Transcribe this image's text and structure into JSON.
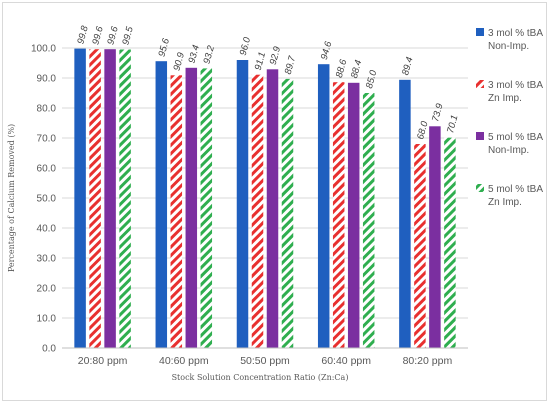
{
  "chart_data": {
    "type": "bar",
    "title": "",
    "xlabel": "Stock Solution Concentration Ratio (Zn:Ca)",
    "ylabel": "Percentage of Calcium Removed (%)",
    "categories": [
      "20:80 ppm",
      "40:60 ppm",
      "50:50 ppm",
      "60:40 ppm",
      "80:20 ppm"
    ],
    "ylim": [
      0,
      100
    ],
    "yticks": [
      "0.0",
      "10.0",
      "20.0",
      "30.0",
      "40.0",
      "50.0",
      "60.0",
      "70.0",
      "80.0",
      "90.0",
      "100.0"
    ],
    "grid": true,
    "legend_position": "right",
    "series": [
      {
        "name": "3 mol % tBA Non-Imp.",
        "legend_lines": [
          "3 mol % tBA",
          "Non-Imp."
        ],
        "color": "#1f5fbf",
        "pattern": "solid",
        "values": [
          99.8,
          95.6,
          96.0,
          94.6,
          89.4
        ],
        "labels": [
          "99.8",
          "95.6",
          "96.0",
          "94.6",
          "89.4"
        ]
      },
      {
        "name": "3 mol % tBA Zn Imp.",
        "legend_lines": [
          "3 mol % tBA",
          "Zn Imp."
        ],
        "color": "#e8302f",
        "pattern": "hatch",
        "values": [
          99.6,
          90.9,
          91.1,
          88.6,
          68.0
        ],
        "labels": [
          "99.6",
          "90.9",
          "91.1",
          "88.6",
          "68.0"
        ]
      },
      {
        "name": "5 mol % tBA Non-Imp.",
        "legend_lines": [
          "5 mol % tBA",
          "Non-Imp."
        ],
        "color": "#7b2fa0",
        "pattern": "solid",
        "values": [
          99.6,
          93.4,
          92.9,
          88.4,
          73.9
        ],
        "labels": [
          "99.6",
          "93.4",
          "92.9",
          "88.4",
          "73.9"
        ]
      },
      {
        "name": "5 mol % tBA Zn Imp.",
        "legend_lines": [
          "5 mol % tBA",
          "Zn Imp."
        ],
        "color": "#2fae4f",
        "pattern": "hatch",
        "values": [
          99.5,
          93.2,
          89.7,
          85.0,
          70.1
        ],
        "labels": [
          "99.5",
          "93.2",
          "89.7",
          "85.0",
          "70.1"
        ]
      }
    ]
  }
}
